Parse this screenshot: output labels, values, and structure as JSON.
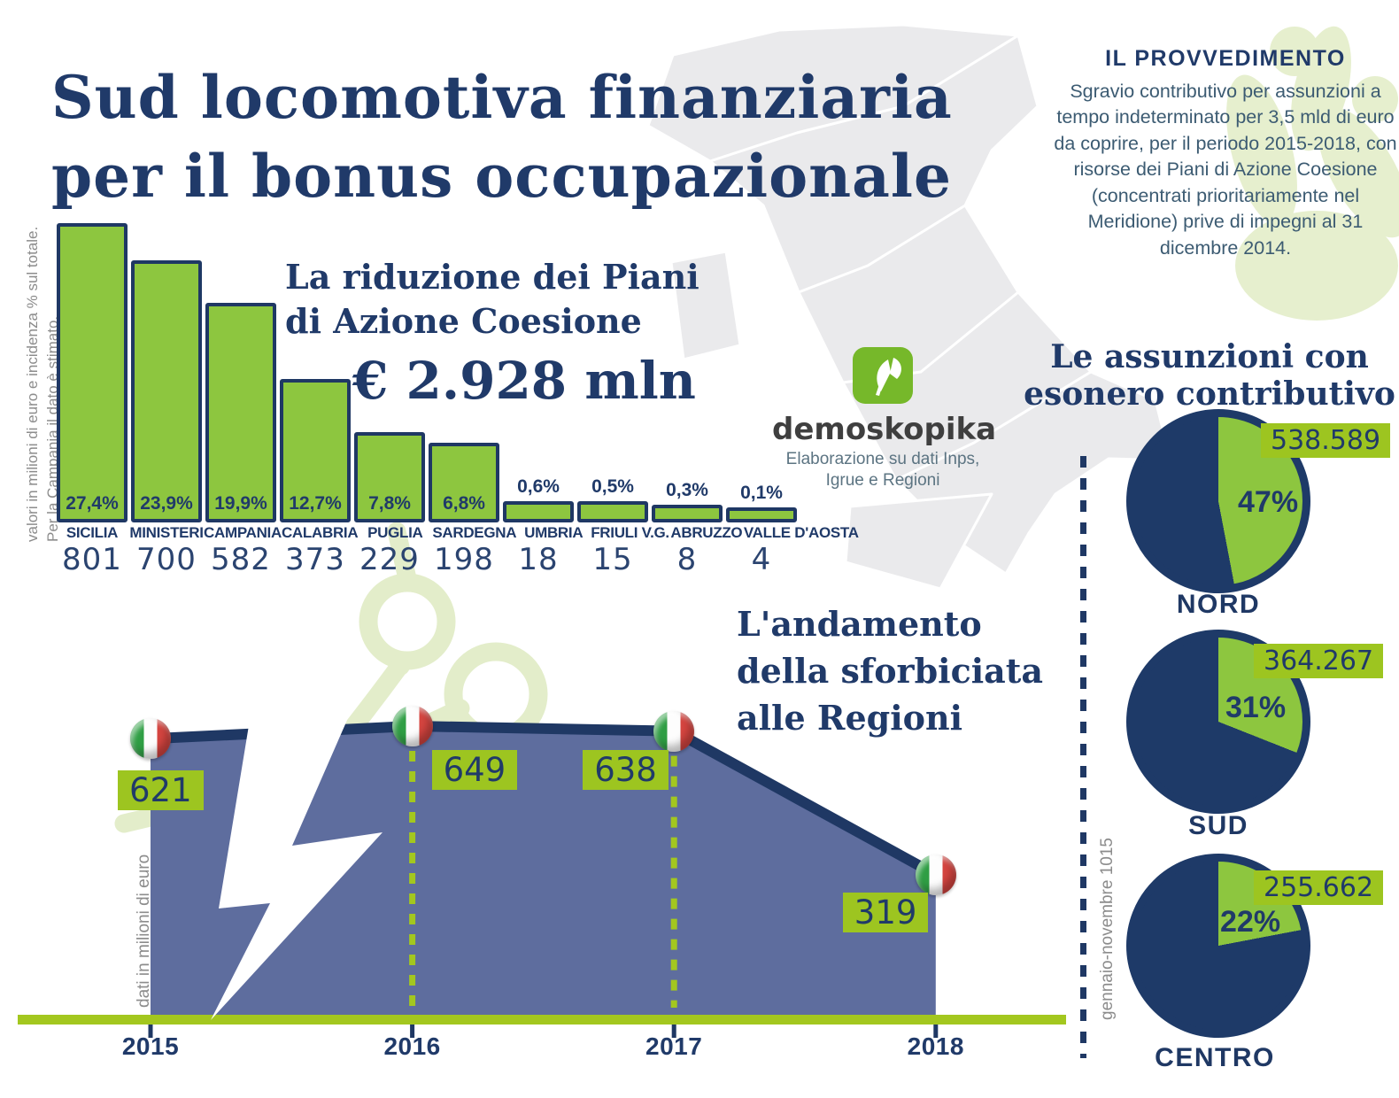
{
  "title": {
    "line1": "Sud locomotiva finanziaria",
    "line2": "per il bonus occupazionale"
  },
  "provvedimento": {
    "heading": "IL PROVVEDIMENTO",
    "body": "Sgravio contributivo per assunzioni a tempo indeterminato per 3,5 mld di euro da coprire, per il periodo 2015-2018, con risorse dei Piani di Azione Coesione (concentrati prioritariamente nel Meridione) prive di impegni al 31 dicembre 2014."
  },
  "bar_section": {
    "caption_line1": "La riduzione dei Piani",
    "caption_line2": "di Azione Coesione",
    "total_label": "€ 2.928 mln",
    "note_line1": "valori in milioni di euro e incidenza % sul totale.",
    "note_line2": "Per la Campania il dato è stimato."
  },
  "logo": {
    "name": "demoskopika",
    "credit_line1": "Elaborazione su dati Inps,",
    "credit_line2": "Igrue e Regioni"
  },
  "pies_section": {
    "heading_line1": "Le assunzioni con",
    "heading_line2": "esonero contributivo",
    "period_note": "gennaio-novembre 1015"
  },
  "area_section": {
    "heading_line1": "L'andamento",
    "heading_line2": "della sforbiciata",
    "heading_line3": "alle Regioni",
    "unit_note": "dati in milioni di euro"
  },
  "chart_data": [
    {
      "type": "bar",
      "title": "La riduzione dei Piani di Azione Coesione",
      "total": "€ 2.928 mln",
      "unit": "milioni di euro",
      "categories": [
        "SICILIA",
        "MINISTERI",
        "CAMPANIA",
        "CALABRIA",
        "PUGLIA",
        "SARDEGNA",
        "UMBRIA",
        "FRIULI V.G.",
        "ABRUZZO",
        "VALLE D'AOSTA"
      ],
      "values": [
        801,
        700,
        582,
        373,
        229,
        198,
        18,
        15,
        8,
        4
      ],
      "percent_labels": [
        "27,4%",
        "23,9%",
        "19,9%",
        "12,7%",
        "7,8%",
        "6,8%",
        "0,6%",
        "0,5%",
        "0,3%",
        "0,1%"
      ]
    },
    {
      "type": "area",
      "title": "L'andamento della sforbiciata alle Regioni",
      "unit": "milioni di euro",
      "x": [
        "2015",
        "2016",
        "2017",
        "2018"
      ],
      "values": [
        621,
        649,
        638,
        319
      ]
    },
    {
      "type": "pie",
      "title": "Le assunzioni con esonero contributivo",
      "period": "gennaio-novembre 1015",
      "slices": [
        {
          "label": "NORD",
          "percent": 47,
          "value_label": "538.589"
        },
        {
          "label": "SUD",
          "percent": 31,
          "value_label": "364.267"
        },
        {
          "label": "CENTRO",
          "percent": 22,
          "value_label": "255.662"
        }
      ]
    }
  ],
  "colors": {
    "navy": "#1f3864",
    "green": "#8dc63f",
    "lime_axis": "#a3c71f",
    "badge_green": "#9dc520",
    "area_fill": "#5e6d9e",
    "map_gray": "#eaeaec",
    "watermark_green": "#e6efce",
    "note_gray": "#8c8c8c",
    "body_text": "#3c5b72",
    "logo_green": "#76b82a"
  }
}
